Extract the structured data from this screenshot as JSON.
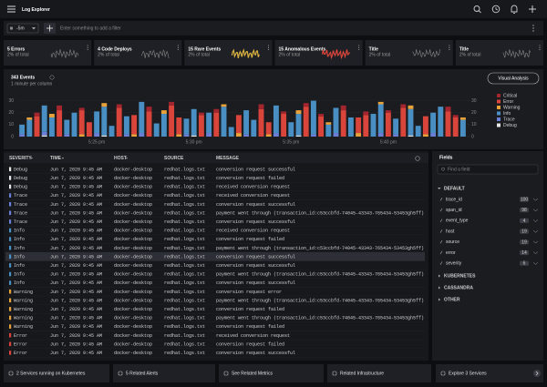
{
  "header": {
    "title": "Log Explorer"
  },
  "filter": {
    "time_range": "-5m",
    "placeholder": "Enter something to add a filter"
  },
  "cards": [
    {
      "title": "5 Errors",
      "subtitle": "2% of total"
    },
    {
      "title": "4 Code Deploys",
      "subtitle": "2% of total"
    },
    {
      "title": "15 Rare Events",
      "subtitle": "2% of total"
    },
    {
      "title": "15 Anomalous Events",
      "subtitle": "2% of total"
    },
    {
      "title": "Title",
      "subtitle": "2% of total"
    },
    {
      "title": "Title",
      "subtitle": "2% of total"
    }
  ],
  "events": {
    "title": "343 Events",
    "subtitle": "1 minute per column",
    "button": "Visual Analysis"
  },
  "chart_data": {
    "type": "bar",
    "stacked": true,
    "grid": true,
    "categories": [
      null,
      null,
      null,
      null,
      null,
      null,
      null,
      null,
      null,
      null,
      "5:25 pm",
      null,
      null,
      null,
      null,
      null,
      null,
      null,
      null,
      null,
      null,
      null,
      null,
      "5:30 pm",
      null,
      null,
      null,
      null,
      null,
      null,
      null,
      null,
      null,
      null,
      null,
      null,
      "5:35 pm",
      null,
      null,
      null,
      null,
      null,
      null,
      null,
      null,
      null,
      null,
      null,
      null,
      "5:40 pm",
      null,
      null,
      null,
      null,
      null,
      null,
      null,
      null,
      null,
      null
    ],
    "ylim": [
      0,
      35
    ],
    "yticks": [
      0,
      10,
      20,
      30
    ],
    "y2lim": [
      0,
      35
    ],
    "y2ticks": [
      0,
      10,
      20,
      30
    ],
    "series": [
      {
        "name": "Critical",
        "color": "#a3262e",
        "values": [
          0,
          0,
          3,
          0,
          0,
          4,
          0,
          0,
          2,
          0,
          0,
          0,
          0,
          3,
          0,
          0,
          0,
          4,
          0,
          0,
          3,
          0,
          0,
          0,
          2,
          0,
          3,
          0,
          0,
          0,
          0,
          0,
          4,
          0,
          0,
          2,
          0,
          0,
          3,
          0,
          2,
          0,
          0,
          4,
          0,
          0,
          3,
          0,
          0,
          2,
          0,
          3,
          0,
          0,
          0,
          0,
          0,
          4,
          2,
          0
        ]
      },
      {
        "name": "Error",
        "color": "#d9453b",
        "values": [
          0,
          0,
          17,
          0,
          0,
          22,
          0,
          0,
          20,
          12,
          0,
          0,
          0,
          24,
          0,
          16,
          0,
          21,
          0,
          0,
          26,
          14,
          0,
          0,
          18,
          0,
          20,
          0,
          0,
          15,
          0,
          0,
          23,
          10,
          0,
          19,
          0,
          0,
          25,
          0,
          17,
          0,
          0,
          22,
          0,
          13,
          18,
          0,
          0,
          20,
          0,
          24,
          0,
          0,
          15,
          0,
          0,
          21,
          16,
          0
        ]
      },
      {
        "name": "Warning",
        "color": "#e8a23a",
        "values": [
          0,
          2,
          0,
          0,
          3,
          0,
          0,
          0,
          2,
          0,
          0,
          3,
          0,
          0,
          0,
          2,
          0,
          0,
          0,
          3,
          0,
          2,
          0,
          0,
          0,
          0,
          0,
          2,
          0,
          3,
          0,
          0,
          0,
          2,
          0,
          0,
          0,
          3,
          0,
          0,
          0,
          2,
          0,
          0,
          0,
          3,
          0,
          0,
          2,
          0,
          0,
          0,
          3,
          0,
          2,
          0,
          0,
          0,
          0,
          2
        ]
      },
      {
        "name": "Info",
        "color": "#4a8fc3",
        "values": [
          8,
          14,
          0,
          22,
          16,
          0,
          12,
          20,
          0,
          0,
          18,
          24,
          9,
          0,
          15,
          0,
          26,
          0,
          11,
          19,
          0,
          0,
          13,
          22,
          0,
          17,
          0,
          25,
          8,
          0,
          20,
          14,
          0,
          0,
          23,
          0,
          12,
          18,
          0,
          28,
          0,
          10,
          21,
          0,
          16,
          0,
          0,
          19,
          24,
          0,
          13,
          0,
          22,
          9,
          0,
          17,
          25,
          0,
          0,
          14
        ]
      },
      {
        "name": "Trace",
        "color": "#6c7fd8",
        "values": [
          2,
          0,
          0,
          3,
          0,
          0,
          2,
          0,
          0,
          0,
          3,
          0,
          0,
          0,
          2,
          0,
          3,
          0,
          0,
          0,
          0,
          0,
          2,
          0,
          0,
          3,
          0,
          0,
          0,
          0,
          2,
          0,
          0,
          0,
          3,
          0,
          0,
          0,
          0,
          2,
          0,
          0,
          3,
          0,
          0,
          0,
          0,
          0,
          3,
          0,
          2,
          0,
          0,
          0,
          0,
          3,
          0,
          0,
          0,
          0
        ]
      },
      {
        "name": "Debug",
        "color": "#e8e8e8",
        "values": [
          0,
          0,
          0,
          1,
          0,
          0,
          0,
          0,
          0,
          0,
          0,
          1,
          0,
          0,
          0,
          0,
          0,
          0,
          0,
          0,
          0,
          0,
          0,
          1,
          0,
          0,
          0,
          0,
          0,
          0,
          0,
          0,
          0,
          0,
          0,
          0,
          0,
          1,
          0,
          0,
          0,
          0,
          0,
          0,
          0,
          0,
          0,
          0,
          0,
          0,
          0,
          0,
          1,
          0,
          0,
          0,
          0,
          0,
          0,
          0
        ]
      }
    ]
  },
  "table": {
    "columns": [
      "SEVERITY",
      "TIME",
      "HOST",
      "SOURCE",
      "MESSAGE"
    ],
    "rows": [
      [
        "Debug",
        "Jun 7, 2020 9:45 AM",
        "docker-desktop",
        "redhat.logs.txt",
        "conversion request successful"
      ],
      [
        "Debug",
        "Jun 7, 2020 9:45 AM",
        "docker-desktop",
        "redhat.logs.txt",
        "conversion request failed"
      ],
      [
        "Debug",
        "Jun 7, 2020 9:45 AM",
        "docker-desktop",
        "redhat.logs.txt",
        "received conversion request"
      ],
      [
        "Trace",
        "Jun 7, 2020 9:45 AM",
        "docker-desktop",
        "redhat.logs.txt",
        "received conversion request"
      ],
      [
        "Trace",
        "Jun 7, 2020 9:45 AM",
        "docker-desktop",
        "redhat.logs.txt",
        "conversion request successful"
      ],
      [
        "Trace",
        "Jun 7, 2020 9:45 AM",
        "docker-desktop",
        "redhat.logs.txt",
        "payment went through (transaction_id:c53ccbfd-74045-43343-765434-53453gh5ff)"
      ],
      [
        "Trace",
        "Jun 7, 2020 9:45 AM",
        "docker-desktop",
        "redhat.logs.txt",
        "conversion request successful"
      ],
      [
        "Info",
        "Jun 7, 2020 9:45 AM",
        "docker-desktop",
        "redhat.logs.txt",
        "received conversion request"
      ],
      [
        "Info",
        "Jun 7, 2020 9:45 AM",
        "docker-desktop",
        "redhat.logs.txt",
        "conversion request failed"
      ],
      [
        "Info",
        "Jun 7, 2020 9:45 AM",
        "docker-desktop",
        "redhat.logs.txt",
        "payment went through (transaction_id:c53ccbfd-74045-43343-765434-53453gh5ff)"
      ],
      [
        "Info",
        "Jun 7, 2020 9:45 AM",
        "docker-desktop",
        "redhat.logs.txt",
        "conversion request successful"
      ],
      [
        "Info",
        "Jun 7, 2020 9:45 AM",
        "docker-desktop",
        "redhat.logs.txt",
        "conversion request successful"
      ],
      [
        "Info",
        "Jun 7, 2020 9:45 AM",
        "docker-desktop",
        "redhat.logs.txt",
        "payment went through (transaction_id:c53ccbfd-74045-43343-765434-53453gh5ff)"
      ],
      [
        "Info",
        "Jun 7, 2020 9:45 AM",
        "docker-desktop",
        "redhat.logs.txt",
        "conversion request successful"
      ],
      [
        "Warning",
        "Jun 7, 2020 9:45 AM",
        "docker-desktop",
        "redhat.logs.txt",
        "conversion request error"
      ],
      [
        "Warning",
        "Jun 7, 2020 9:45 AM",
        "docker-desktop",
        "redhat.logs.txt",
        "payment went through (transaction_id:c53ccbfd-74045-43343-765434-53453gh5ff)"
      ],
      [
        "Warning",
        "Jun 7, 2020 9:45 AM",
        "docker-desktop",
        "redhat.logs.txt",
        "conversion request failed"
      ],
      [
        "Warning",
        "Jun 7, 2020 9:45 AM",
        "docker-desktop",
        "redhat.logs.txt",
        "payment went through (transaction_id:c53ccbfd-74045-43343-765434-53453gh5ff)"
      ],
      [
        "Warning",
        "Jun 7, 2020 9:45 AM",
        "docker-desktop",
        "redhat.logs.txt",
        "conversion request failed"
      ],
      [
        "Error",
        "Jun 7, 2020 9:45 AM",
        "docker-desktop",
        "redhat.logs.txt",
        "received conversion request"
      ],
      [
        "Error",
        "Jun 7, 2020 9:45 AM",
        "docker-desktop",
        "redhat.logs.txt",
        "conversion request failed"
      ],
      [
        "Error",
        "Jun 7, 2020 9:45 AM",
        "docker-desktop",
        "redhat.logs.txt",
        "conversion request successful"
      ]
    ]
  },
  "fields": {
    "title": "Fields",
    "search": "Find a field",
    "group": "DEFAULT",
    "items": [
      {
        "name": "trace_id",
        "count": 100
      },
      {
        "name": "span_id",
        "count": 98
      },
      {
        "name": "event_type",
        "count": 4
      },
      {
        "name": "host",
        "count": 19
      },
      {
        "name": "source",
        "count": 19
      },
      {
        "name": "error",
        "count": 14
      },
      {
        "name": "severity",
        "count": 6
      }
    ],
    "other_groups": [
      "KUBERNETES",
      "CASSANDRA",
      "OTHER"
    ]
  },
  "footer": [
    "2 Services running on Kubernetes",
    "5 Related Alerts",
    "See Related Metrics",
    "Related Infrastructure",
    "Explore 3 Services"
  ]
}
